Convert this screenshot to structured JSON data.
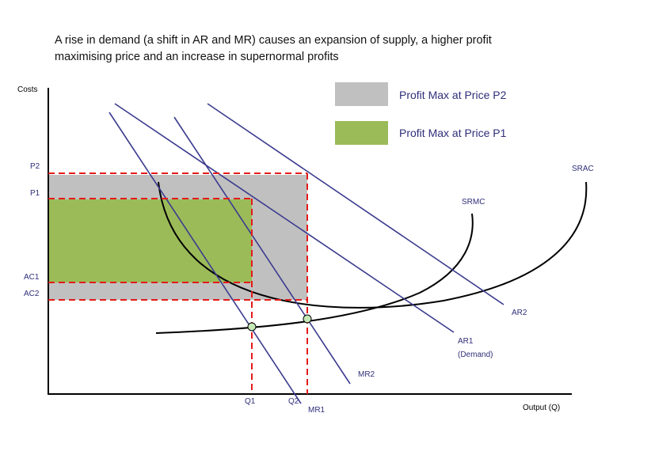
{
  "title": {
    "line1": "A rise in demand (a shift in AR and MR) causes an expansion of supply, a higher profit",
    "line2": "maximising price and an increase in supernormal profits"
  },
  "legend": {
    "p2_label": "Profit Max at Price P2",
    "p1_label": "Profit Max at Price P1",
    "p2_color": "#c0c0c0",
    "p1_color": "#9bbb59"
  },
  "axes": {
    "y_label": "Costs",
    "x_label": "Output (Q)"
  },
  "price_labels": {
    "p2": "P2",
    "p1": "P1",
    "ac1": "AC1",
    "ac2": "AC2"
  },
  "quantity_labels": {
    "q1": "Q1",
    "q2": "Q2"
  },
  "curve_labels": {
    "srac": "SRAC",
    "srmc": "SRMC",
    "ar2": "AR2",
    "ar1_line1": "AR1",
    "ar1_line2": "(Demand)",
    "mr2": "MR2",
    "mr1": "MR1"
  },
  "colors": {
    "demand_lines": "#3b3b8f",
    "cost_curves": "#000000",
    "guides": "#e41a1a",
    "points": "#c5e8b7",
    "label_text": "#2f2f7a"
  }
}
